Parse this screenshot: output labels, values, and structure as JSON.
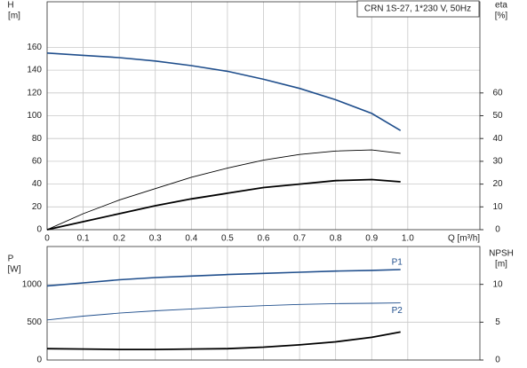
{
  "chart_data": [
    {
      "type": "line",
      "title": "CRN 1S-27, 1*230 V, 50Hz",
      "y_label": [
        "H",
        "[m]"
      ],
      "y2_label": [
        "eta",
        "[%]"
      ],
      "x_label": "Q [m³/h]",
      "x": [
        0,
        0.1,
        0.2,
        0.3,
        0.4,
        0.5,
        0.6,
        0.7,
        0.8,
        0.9,
        0.98
      ],
      "xlim": [
        0,
        1.2
      ],
      "xticks": [
        0,
        0.1,
        0.2,
        0.3,
        0.4,
        0.5,
        0.6,
        0.7,
        0.8,
        0.9,
        {
          "value": 1.0,
          "label": "1.0"
        }
      ],
      "show_xtick_labels": true,
      "ylim": [
        0,
        200
      ],
      "yticks": [
        0,
        20,
        40,
        60,
        80,
        100,
        120,
        140,
        160
      ],
      "y2lim": [
        0,
        100
      ],
      "y2ticks": [
        0,
        10,
        20,
        30,
        40,
        50,
        60
      ],
      "grid": true,
      "series": [
        {
          "color": "#1f4e8c",
          "width": 1.6,
          "values": [
            155,
            153,
            151,
            148,
            144,
            139,
            132,
            124,
            114,
            102,
            87
          ]
        },
        {
          "color": "#000000",
          "width": 0.9,
          "axis": "y2",
          "values": [
            0,
            7,
            13,
            18,
            23,
            27,
            30.5,
            33,
            34.5,
            35,
            33.5
          ]
        },
        {
          "color": "#000000",
          "width": 1.8,
          "axis": "y2",
          "values": [
            0,
            3.5,
            7,
            10.5,
            13.5,
            16,
            18.5,
            20,
            21.5,
            22,
            21
          ]
        }
      ]
    },
    {
      "type": "line",
      "y_label": [
        "P",
        "[W]"
      ],
      "y2_label": [
        "NPSH",
        "[m]"
      ],
      "x": [
        0,
        0.1,
        0.2,
        0.3,
        0.4,
        0.5,
        0.6,
        0.7,
        0.8,
        0.9,
        0.98
      ],
      "xlim": [
        0,
        1.2
      ],
      "xticks": [
        0,
        0.1,
        0.2,
        0.3,
        0.4,
        0.5,
        0.6,
        0.7,
        0.8,
        0.9,
        1.0
      ],
      "show_xtick_labels": false,
      "ylim": [
        0,
        1500
      ],
      "yticks": [
        0,
        500,
        1000
      ],
      "y2lim": [
        0,
        15
      ],
      "y2ticks": [
        0,
        5,
        10
      ],
      "grid": true,
      "series": [
        {
          "name": "P1",
          "color": "#1f4e8c",
          "width": 1.6,
          "values": [
            980,
            1020,
            1060,
            1090,
            1110,
            1130,
            1145,
            1160,
            1175,
            1185,
            1195
          ]
        },
        {
          "name": "P2",
          "color": "#1f4e8c",
          "width": 0.9,
          "values": [
            530,
            580,
            620,
            650,
            675,
            700,
            718,
            735,
            745,
            750,
            755
          ]
        },
        {
          "color": "#000000",
          "width": 1.8,
          "axis": "y2",
          "values": [
            1.5,
            1.45,
            1.4,
            1.4,
            1.45,
            1.5,
            1.7,
            2.0,
            2.4,
            3.0,
            3.7
          ]
        }
      ]
    }
  ]
}
